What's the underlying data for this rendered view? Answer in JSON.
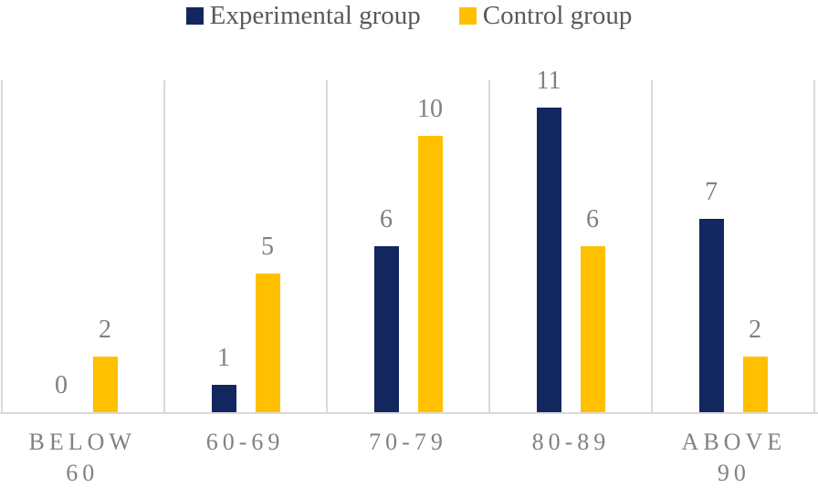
{
  "chart_data": {
    "type": "bar",
    "title": "",
    "xlabel": "",
    "ylabel": "",
    "categories": [
      "BELOW 60",
      "60-69",
      "70-79",
      "80-89",
      "ABOVE 90"
    ],
    "series": [
      {
        "name": "Experimental group",
        "color": "#122760",
        "values": [
          0,
          1,
          6,
          11,
          7
        ]
      },
      {
        "name": "Control group",
        "color": "#FFC000",
        "values": [
          2,
          5,
          10,
          6,
          2
        ]
      }
    ],
    "ylim": [
      0,
      12
    ],
    "y_axis_visible": false,
    "grid": "vertical category separators only",
    "grid_color": "#D9D9D9",
    "axis_line_color": "#D9D9D9",
    "data_labels": true,
    "data_label_color": "#7F7F7F",
    "category_label_color": "#818181",
    "legend_position": "top",
    "legend_text_color": "#595959"
  }
}
